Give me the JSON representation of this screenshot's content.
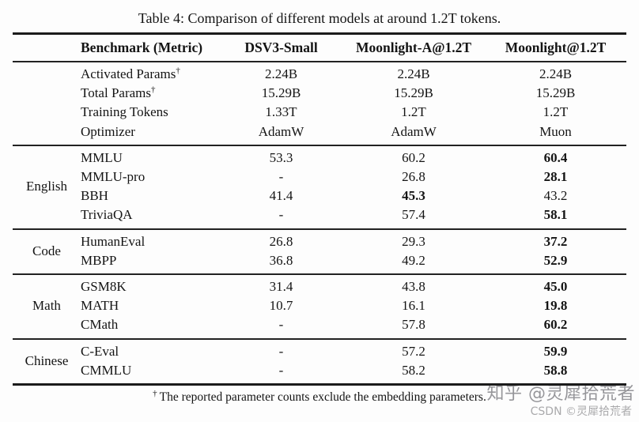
{
  "title": "Table 4: Comparison of different models at around 1.2T tokens.",
  "table": {
    "headers": [
      "Benchmark (Metric)",
      "DSV3-Small",
      "Moonlight-A@1.2T",
      "Moonlight@1.2T"
    ],
    "sections": [
      {
        "group": "",
        "rows": [
          {
            "metric": "Activated Params",
            "sup": "†",
            "v": [
              "2.24B",
              "2.24B",
              "2.24B"
            ]
          },
          {
            "metric": "Total Params",
            "sup": "†",
            "v": [
              "15.29B",
              "15.29B",
              "15.29B"
            ]
          },
          {
            "metric": "Training Tokens",
            "v": [
              "1.33T",
              "1.2T",
              "1.2T"
            ]
          },
          {
            "metric": "Optimizer",
            "v": [
              "AdamW",
              "AdamW",
              "Muon"
            ]
          }
        ]
      },
      {
        "group": "English",
        "rows": [
          {
            "metric": "MMLU",
            "v": [
              "53.3",
              "60.2",
              "60.4"
            ]
          },
          {
            "metric": "MMLU-pro",
            "v": [
              "-",
              "26.8",
              "28.1"
            ]
          },
          {
            "metric": "BBH",
            "v": [
              "41.4",
              "45.3",
              "43.2"
            ]
          },
          {
            "metric": "TriviaQA",
            "v": [
              "-",
              "57.4",
              "58.1"
            ]
          }
        ]
      },
      {
        "group": "Code",
        "rows": [
          {
            "metric": "HumanEval",
            "v": [
              "26.8",
              "29.3",
              "37.2"
            ]
          },
          {
            "metric": "MBPP",
            "v": [
              "36.8",
              "49.2",
              "52.9"
            ]
          }
        ]
      },
      {
        "group": "Math",
        "rows": [
          {
            "metric": "GSM8K",
            "v": [
              "31.4",
              "43.8",
              "45.0"
            ]
          },
          {
            "metric": "MATH",
            "v": [
              "10.7",
              "16.1",
              "19.8"
            ]
          },
          {
            "metric": "CMath",
            "v": [
              "-",
              "57.8",
              "60.2"
            ]
          }
        ]
      },
      {
        "group": "Chinese",
        "rows": [
          {
            "metric": "C-Eval",
            "v": [
              "-",
              "57.2",
              "59.9"
            ]
          },
          {
            "metric": "CMMLU",
            "v": [
              "-",
              "58.2",
              "58.8"
            ]
          }
        ]
      }
    ]
  },
  "footnote": {
    "dagger": "†",
    "text": "The reported parameter counts exclude the embedding parameters."
  },
  "watermarks": {
    "zhihu": "知乎 @灵犀拾荒者",
    "csdn": "CSDN ©灵犀拾荒者"
  },
  "colors": {
    "rule": "#1b1b1b",
    "text": "#141414",
    "watermark_primary": "#96969a",
    "watermark_secondary": "#aaaaac",
    "background": "#fdfdfd"
  }
}
